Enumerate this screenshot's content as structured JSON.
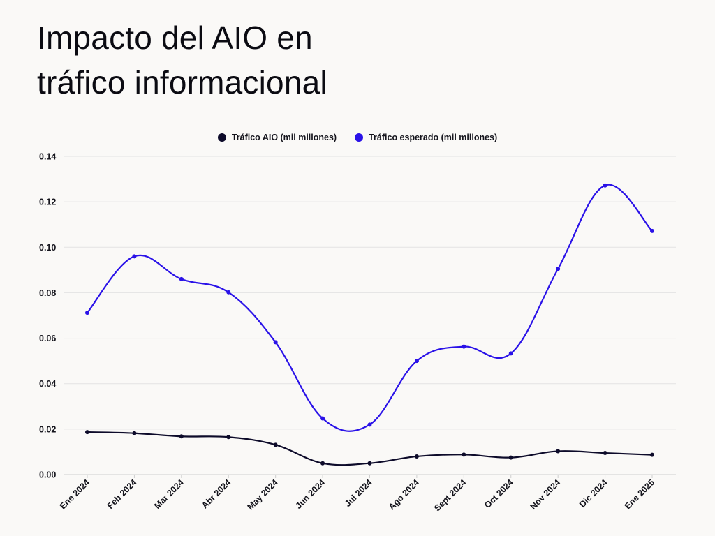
{
  "title": {
    "line1": "Impacto del AIO en",
    "line2": "tráfico informacional"
  },
  "chart_data": {
    "type": "line",
    "smooth": true,
    "categories": [
      "Ene 2024",
      "Feb 2024",
      "Mar 2024",
      "Abr 2024",
      "May 2024",
      "Jun 2024",
      "Jul 2024",
      "Ago 2024",
      "Sept 2024",
      "Oct 2024",
      "Nov 2024",
      "Dic 2024",
      "Ene 2025"
    ],
    "series": [
      {
        "name": "Tráfico AIO (mil millones)",
        "color": "#0d0b2a",
        "values": [
          0.0187,
          0.0182,
          0.0168,
          0.0165,
          0.0131,
          0.005,
          0.005,
          0.008,
          0.0088,
          0.0075,
          0.0103,
          0.0095,
          0.0087
        ]
      },
      {
        "name": "Tráfico esperado (mil millones)",
        "color": "#2a12e8",
        "values": [
          0.0712,
          0.096,
          0.086,
          0.0802,
          0.0582,
          0.0247,
          0.022,
          0.05,
          0.0563,
          0.0533,
          0.0905,
          0.1272,
          0.1072
        ]
      }
    ],
    "ylim": [
      0,
      0.14
    ],
    "yticks": [
      "0.00",
      "0.02",
      "0.04",
      "0.06",
      "0.08",
      "0.10",
      "0.12",
      "0.14"
    ],
    "grid": true,
    "legend_position": "top-center"
  }
}
